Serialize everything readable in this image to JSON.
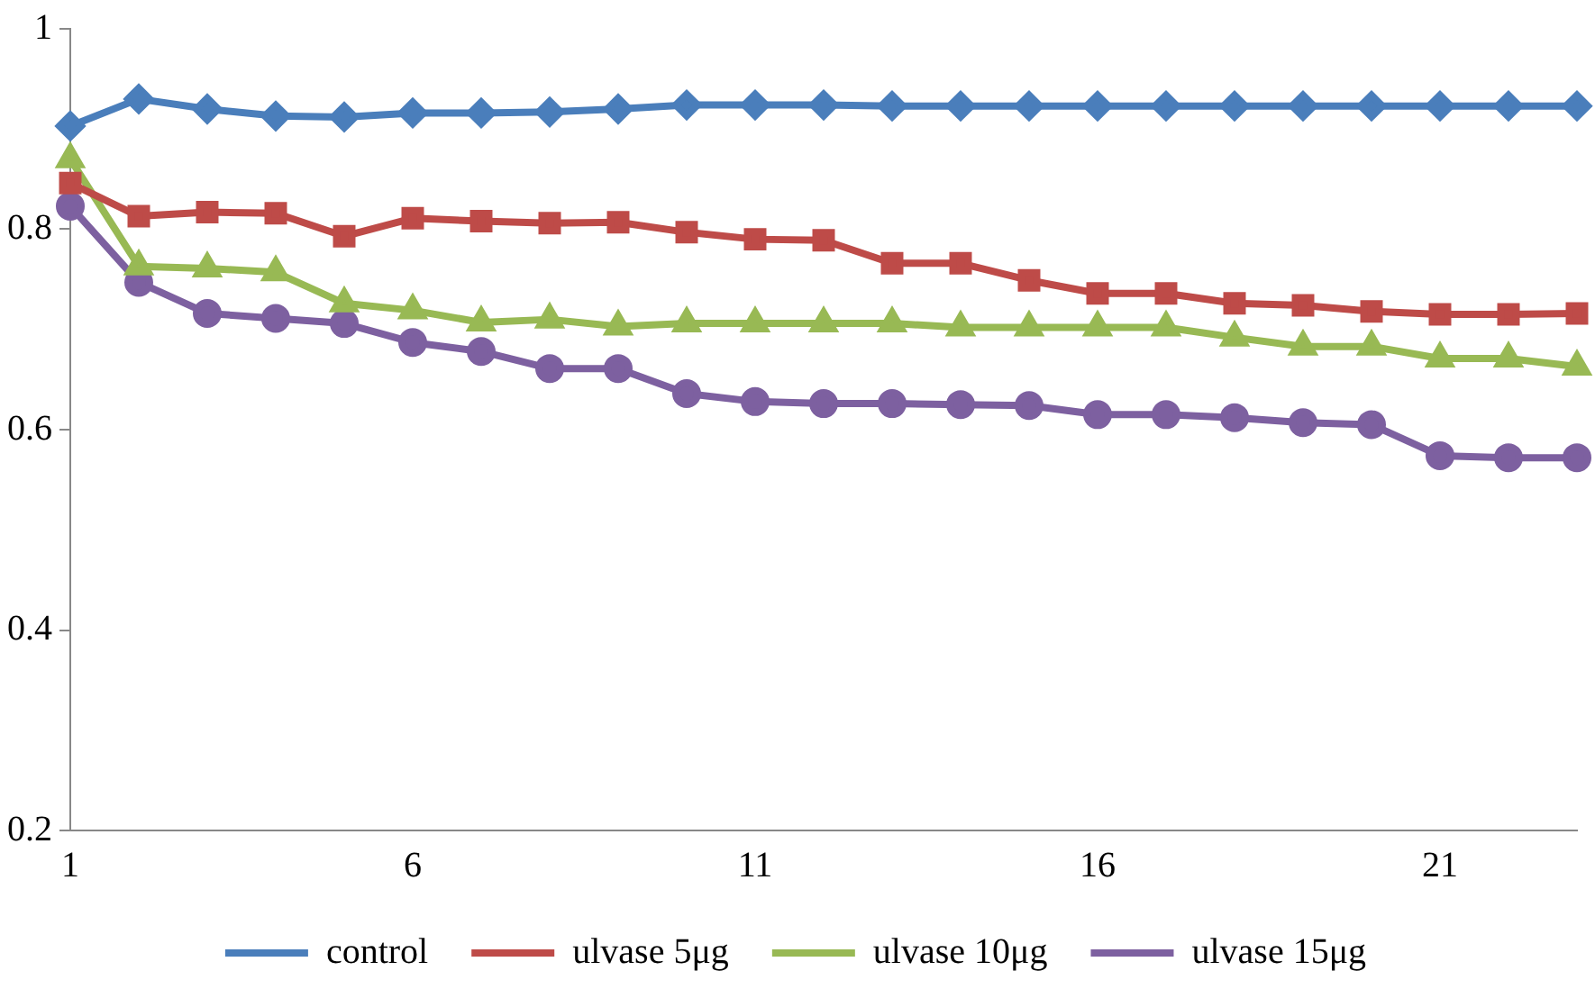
{
  "chart_data": {
    "type": "line",
    "categories": [
      "1",
      null,
      null,
      null,
      null,
      "6",
      null,
      null,
      null,
      null,
      "11",
      null,
      null,
      null,
      null,
      "16",
      null,
      null,
      null,
      null,
      "21",
      null,
      null
    ],
    "series": [
      {
        "name": "control",
        "color": "#4a7ebb",
        "marker": "diamond",
        "values": [
          0.903,
          0.93,
          0.92,
          0.913,
          0.912,
          0.916,
          0.916,
          0.917,
          0.92,
          0.924,
          0.924,
          0.924,
          0.923,
          0.923,
          0.923,
          0.923,
          0.923,
          0.923,
          0.923,
          0.923,
          0.923,
          0.923,
          0.923
        ]
      },
      {
        "name": "ulvase 5μg",
        "color": "#be4b48",
        "marker": "square",
        "values": [
          0.846,
          0.813,
          0.817,
          0.816,
          0.793,
          0.811,
          0.808,
          0.806,
          0.807,
          0.797,
          0.79,
          0.789,
          0.766,
          0.766,
          0.749,
          0.736,
          0.736,
          0.726,
          0.724,
          0.718,
          0.715,
          0.715,
          0.716
        ]
      },
      {
        "name": "ulvase 10μg",
        "color": "#98b954",
        "marker": "triangle",
        "values": [
          0.87,
          0.763,
          0.761,
          0.757,
          0.726,
          0.719,
          0.707,
          0.71,
          0.703,
          0.706,
          0.706,
          0.706,
          0.706,
          0.702,
          0.702,
          0.702,
          0.702,
          0.692,
          0.683,
          0.683,
          0.671,
          0.671,
          0.663
        ]
      },
      {
        "name": "ulvase 15μg",
        "color": "#7d60a0",
        "marker": "circle",
        "values": [
          0.823,
          0.747,
          0.716,
          0.711,
          0.706,
          0.687,
          0.678,
          0.661,
          0.661,
          0.636,
          0.628,
          0.626,
          0.626,
          0.625,
          0.624,
          0.615,
          0.615,
          0.612,
          0.607,
          0.605,
          0.574,
          0.572,
          0.572
        ]
      }
    ],
    "ylim": [
      0.2,
      1
    ],
    "yticks": [
      0.2,
      0.4,
      0.6,
      0.8,
      1
    ],
    "grid": false,
    "legend": "bottom"
  }
}
